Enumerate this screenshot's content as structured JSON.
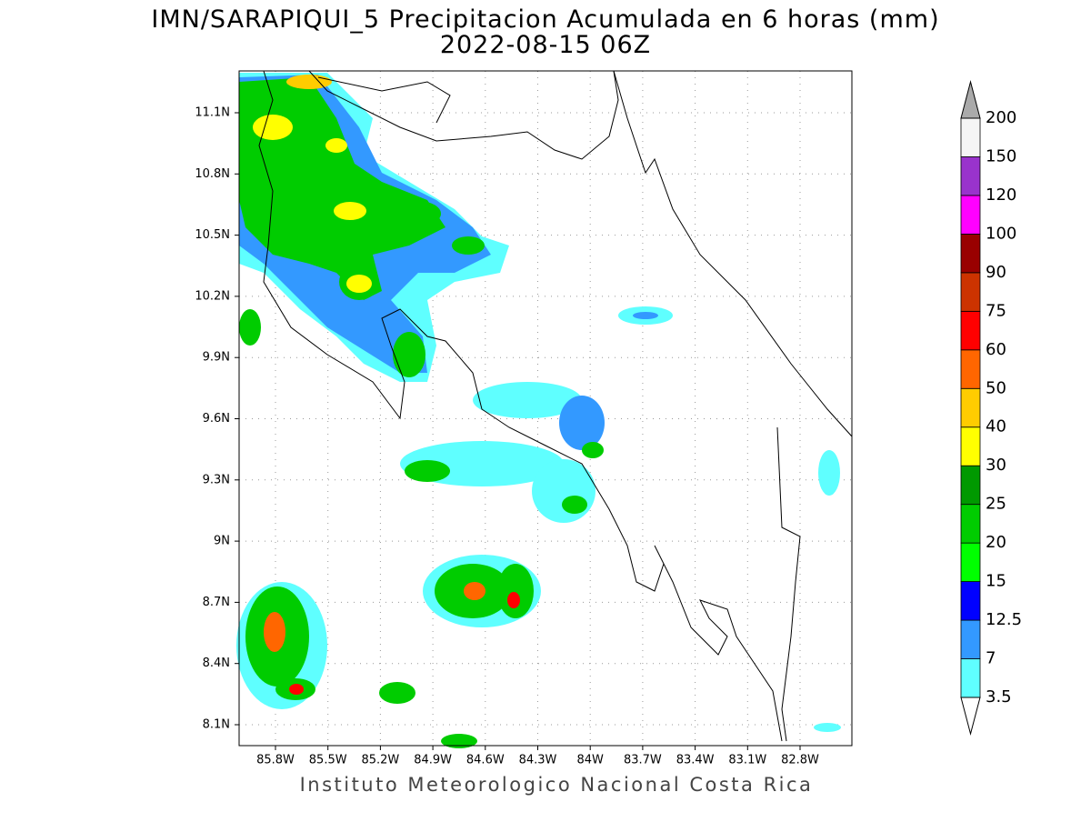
{
  "title": "IMN/SARAPIQUI_5 Precipitacion Acumulada en 6 horas (mm)",
  "subtitle": "2022-08-15 06Z",
  "lat_labels": [
    "11.1N",
    "10.8N",
    "10.5N",
    "10.2N",
    "9.9N",
    "9.6N",
    "9.3N",
    "9N",
    "8.7N",
    "8.4N",
    "8.1N"
  ],
  "lon_labels": [
    "85.8W",
    "85.5W",
    "85.2W",
    "84.9W",
    "84.6W",
    "84.3W",
    "84W",
    "83.7W",
    "83.4W",
    "83.1W",
    "82.8W"
  ],
  "colorbar": {
    "levels": [
      3.5,
      7,
      12.5,
      15,
      20,
      25,
      30,
      40,
      50,
      60,
      75,
      90,
      100,
      120,
      150,
      200
    ],
    "colors": [
      "#5fffff",
      "#3399ff",
      "#0000ff",
      "#00ff00",
      "#00cc00",
      "#009900",
      "#ffff00",
      "#ffcc00",
      "#ff6600",
      "#ff0000",
      "#cc3300",
      "#990000",
      "#ff00ff",
      "#9933cc",
      "#f5f5f5"
    ],
    "under_color": "#ffffff",
    "over_color": "#aaaaaa"
  },
  "footer": "Instituto Meteorologico Nacional Costa Rica"
}
